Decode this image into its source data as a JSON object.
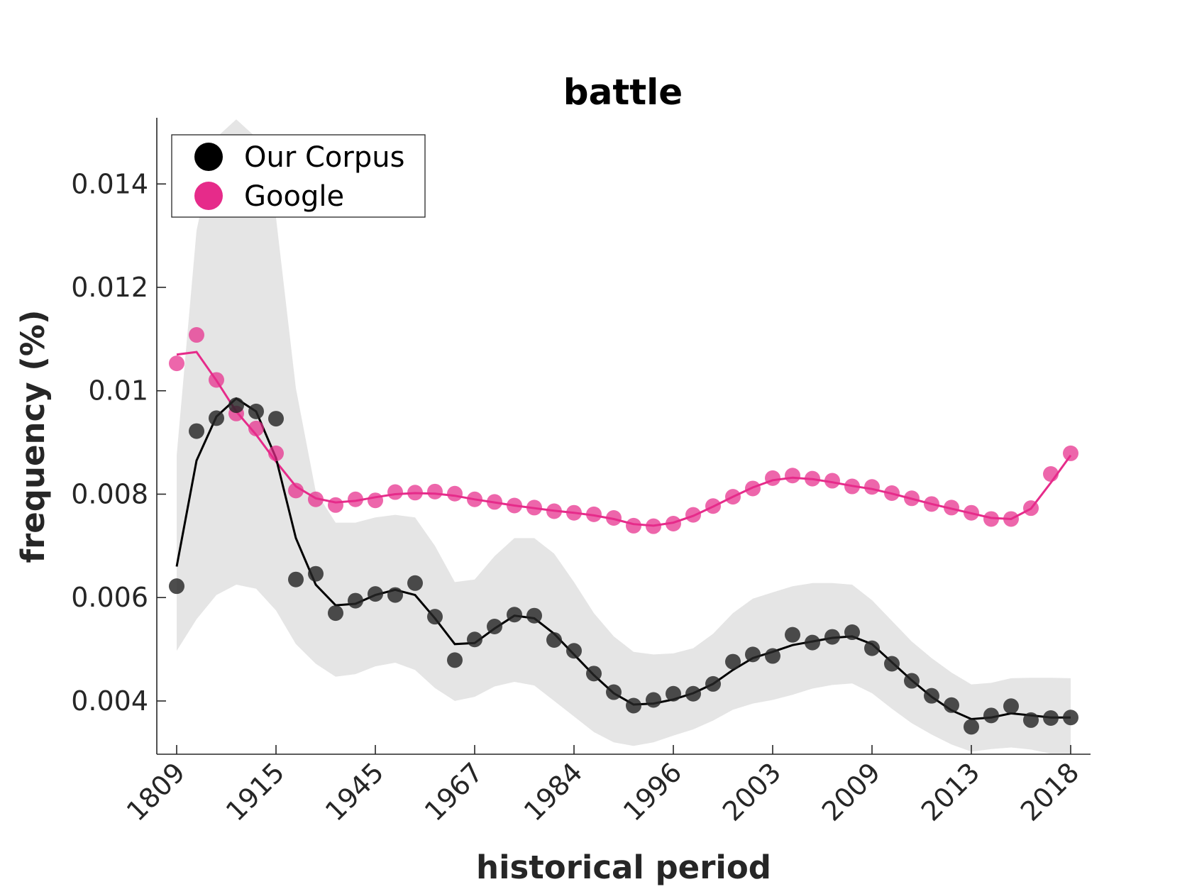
{
  "chart_data": {
    "type": "line",
    "title": "battle",
    "xlabel": "historical period",
    "ylabel": "frequency (%)",
    "x_tick_labels": [
      "1809",
      "1915",
      "1945",
      "1967",
      "1984",
      "1996",
      "2003",
      "2009",
      "2013",
      "2018"
    ],
    "x_tick_index": [
      0,
      5,
      10,
      15,
      20,
      25,
      30,
      35,
      40,
      45
    ],
    "y_ticks": [
      0.004,
      0.006,
      0.008,
      0.01,
      0.012,
      0.014
    ],
    "y_tick_labels": [
      "0.004",
      "0.006",
      "0.008",
      "0.01",
      "0.012",
      "0.014"
    ],
    "xlim": [
      -1,
      46
    ],
    "ylim": [
      0.00297,
      0.01528
    ],
    "grid": false,
    "legend_position": "top-left",
    "series": [
      {
        "name": "Our Corpus",
        "color": "#000000",
        "points": [
          0.00622,
          0.00922,
          0.00947,
          0.00972,
          0.0096,
          0.00946,
          0.00635,
          0.00646,
          0.0057,
          0.00594,
          0.00607,
          0.00605,
          0.00628,
          0.00563,
          0.00479,
          0.00519,
          0.00544,
          0.00567,
          0.00565,
          0.00518,
          0.00497,
          0.00453,
          0.00417,
          0.00391,
          0.00402,
          0.00414,
          0.00414,
          0.00433,
          0.00476,
          0.0049,
          0.00487,
          0.00528,
          0.00513,
          0.00524,
          0.00533,
          0.00502,
          0.00472,
          0.00439,
          0.0041,
          0.00392,
          0.0035,
          0.00372,
          0.0039,
          0.00363,
          0.00367,
          0.00368
        ],
        "smoothed": [
          0.0066,
          0.00865,
          0.0095,
          0.00985,
          0.0096,
          0.0087,
          0.00715,
          0.00625,
          0.00585,
          0.00588,
          0.00605,
          0.00615,
          0.00605,
          0.0056,
          0.0051,
          0.00512,
          0.0054,
          0.00565,
          0.0056,
          0.0053,
          0.0049,
          0.0045,
          0.00415,
          0.00393,
          0.00395,
          0.00403,
          0.00415,
          0.00433,
          0.0046,
          0.00483,
          0.00495,
          0.00508,
          0.00515,
          0.00522,
          0.00525,
          0.0051,
          0.00475,
          0.0044,
          0.00408,
          0.00382,
          0.00365,
          0.00368,
          0.00376,
          0.00372,
          0.00368,
          0.00368
        ],
        "band_upper": [
          0.00875,
          0.0131,
          0.0149,
          0.01525,
          0.0149,
          0.01335,
          0.01005,
          0.00805,
          0.00745,
          0.00745,
          0.00755,
          0.0076,
          0.00755,
          0.007,
          0.0063,
          0.00635,
          0.0068,
          0.00715,
          0.00715,
          0.00685,
          0.0063,
          0.0057,
          0.00525,
          0.00495,
          0.0049,
          0.00492,
          0.00502,
          0.0053,
          0.0057,
          0.00598,
          0.0061,
          0.00622,
          0.00628,
          0.00628,
          0.00625,
          0.00595,
          0.00555,
          0.00515,
          0.00483,
          0.00455,
          0.00432,
          0.00435,
          0.00444,
          0.00445,
          0.00445,
          0.00444
        ],
        "band_lower": [
          0.00497,
          0.00558,
          0.00605,
          0.00625,
          0.00617,
          0.00575,
          0.0051,
          0.00472,
          0.00447,
          0.00452,
          0.00467,
          0.00474,
          0.0046,
          0.00425,
          0.004,
          0.00408,
          0.00428,
          0.00437,
          0.0043,
          0.004,
          0.0037,
          0.0034,
          0.0032,
          0.00313,
          0.0032,
          0.00333,
          0.00345,
          0.00362,
          0.00383,
          0.00395,
          0.00402,
          0.00412,
          0.00424,
          0.00431,
          0.00434,
          0.00415,
          0.00385,
          0.00357,
          0.00335,
          0.00316,
          0.00302,
          0.00307,
          0.0031,
          0.00306,
          0.00298,
          0.00298
        ]
      },
      {
        "name": "Google",
        "color": "#e62b8a",
        "points": [
          0.01053,
          0.01108,
          0.01021,
          0.00956,
          0.00927,
          0.00879,
          0.00807,
          0.0079,
          0.00779,
          0.0079,
          0.00788,
          0.00804,
          0.00803,
          0.00805,
          0.00801,
          0.0079,
          0.00785,
          0.00778,
          0.00774,
          0.00767,
          0.00764,
          0.00761,
          0.00754,
          0.00739,
          0.00738,
          0.00743,
          0.0076,
          0.00777,
          0.00795,
          0.00811,
          0.00831,
          0.00836,
          0.0083,
          0.00826,
          0.00815,
          0.00814,
          0.00802,
          0.00792,
          0.00781,
          0.00774,
          0.00764,
          0.00752,
          0.00752,
          0.00773,
          0.00839,
          0.00879
        ],
        "smoothed": [
          0.0107,
          0.01075,
          0.0102,
          0.0096,
          0.00915,
          0.00863,
          0.00815,
          0.00792,
          0.00784,
          0.00787,
          0.00794,
          0.008,
          0.00802,
          0.00801,
          0.00797,
          0.0079,
          0.00784,
          0.00778,
          0.00773,
          0.00768,
          0.00764,
          0.00759,
          0.00752,
          0.00742,
          0.00739,
          0.00745,
          0.00758,
          0.00776,
          0.00795,
          0.00813,
          0.00827,
          0.00832,
          0.00829,
          0.00823,
          0.00816,
          0.0081,
          0.00801,
          0.00791,
          0.00781,
          0.00772,
          0.00763,
          0.00754,
          0.00752,
          0.00772,
          0.00822,
          0.00875
        ]
      }
    ]
  }
}
